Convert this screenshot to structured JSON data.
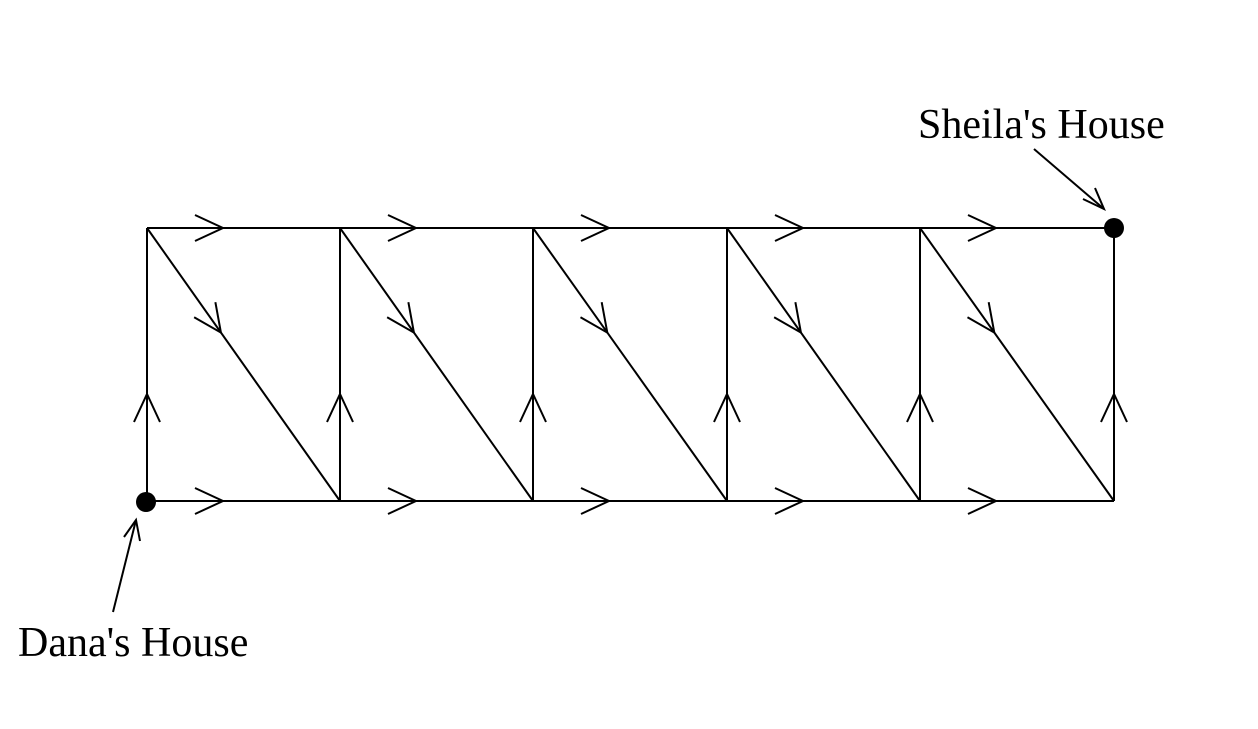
{
  "labels": {
    "start": "Dana's House",
    "end": "Sheila's House"
  },
  "grid": {
    "columns": 5,
    "rows": 1
  },
  "colors": {
    "line": "#000000",
    "background": "#ffffff"
  }
}
